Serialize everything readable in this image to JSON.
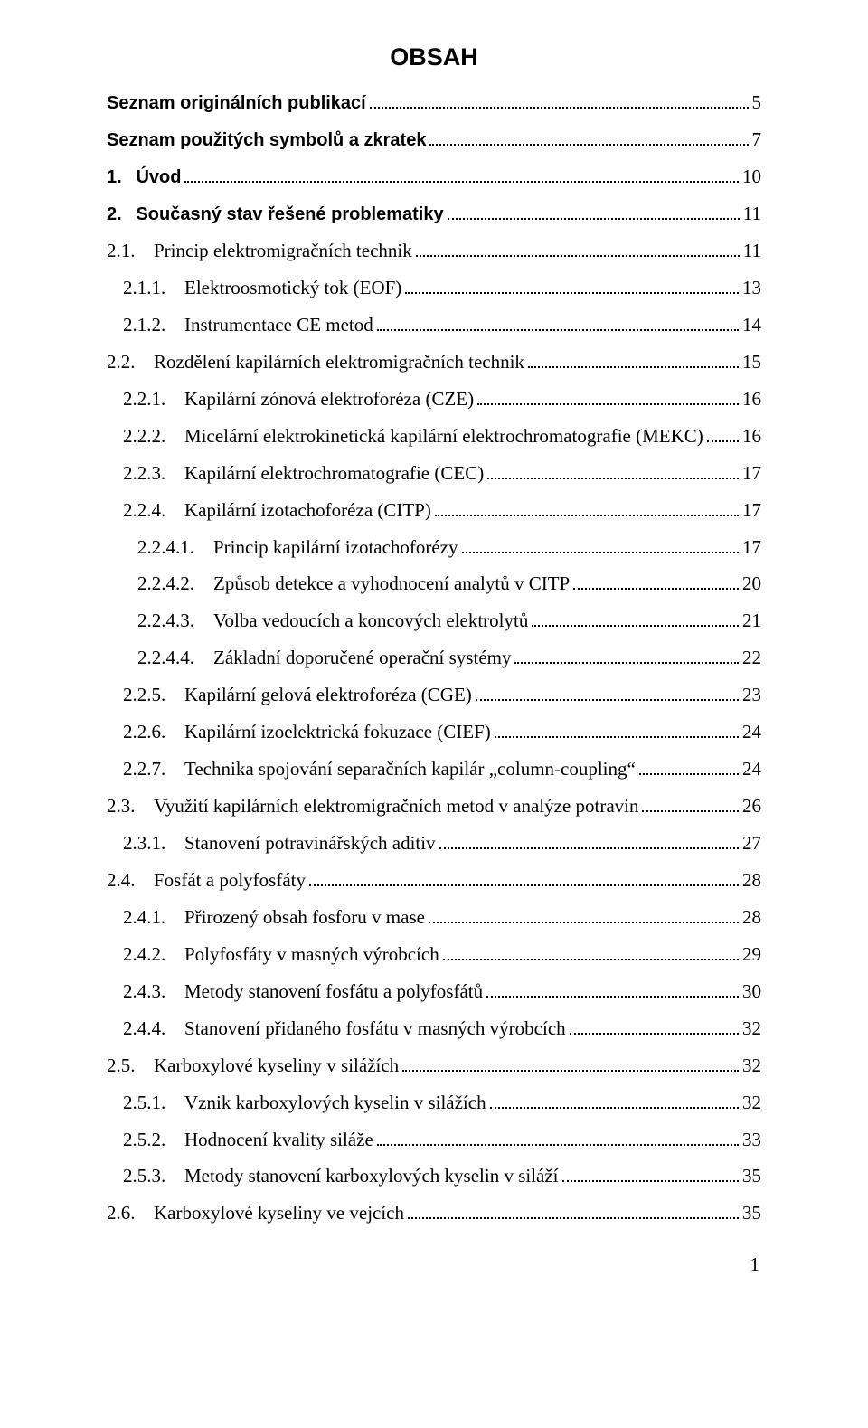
{
  "title": "OBSAH",
  "page_number": "1",
  "colors": {
    "background": "#ffffff",
    "text": "#000000",
    "dots": "#000000"
  },
  "typography": {
    "body_font": "Times New Roman, serif",
    "heading_font": "Arial, sans-serif",
    "body_fontsize_pt": 12,
    "title_fontsize_pt": 14,
    "line_height": 1.95
  },
  "entries": [
    {
      "num": "",
      "label": "Seznam originálních publikací",
      "page": "5",
      "level": 0,
      "bold": true
    },
    {
      "num": "",
      "label": "Seznam použitých symbolů a zkratek",
      "page": "7",
      "level": 0,
      "bold": true
    },
    {
      "num": "1.",
      "label": "Úvod",
      "page": "10",
      "level": 0,
      "bold": true,
      "numgap": " "
    },
    {
      "num": "2.",
      "label": "Současný stav řešené problematiky",
      "page": "11",
      "level": 0,
      "bold": true,
      "numgap": " "
    },
    {
      "num": "2.1.",
      "label": "Princip elektromigračních technik",
      "page": "11",
      "level": 1
    },
    {
      "num": "2.1.1.",
      "label": "Elektroosmotický tok (EOF)",
      "page": "13",
      "level": 2
    },
    {
      "num": "2.1.2.",
      "label": "Instrumentace CE metod",
      "page": "14",
      "level": 2
    },
    {
      "num": "2.2.",
      "label": "Rozdělení kapilárních elektromigračních technik",
      "page": "15",
      "level": 1
    },
    {
      "num": "2.2.1.",
      "label": "Kapilární zónová elektroforéza (CZE)",
      "page": "16",
      "level": 2
    },
    {
      "num": "2.2.2.",
      "label": "Micelární elektrokinetická kapilární elektrochromatografie (MEKC)",
      "page": "16",
      "level": 2
    },
    {
      "num": "2.2.3.",
      "label": "Kapilární elektrochromatografie (CEC)",
      "page": "17",
      "level": 2
    },
    {
      "num": "2.2.4.",
      "label": "Kapilární izotachoforéza (CITP)",
      "page": "17",
      "level": 2
    },
    {
      "num": "2.2.4.1.",
      "label": "Princip kapilární izotachoforézy",
      "page": "17",
      "level": 3
    },
    {
      "num": "2.2.4.2.",
      "label": "Způsob detekce a vyhodnocení analytů v CITP",
      "page": "20",
      "level": 3
    },
    {
      "num": "2.2.4.3.",
      "label": "Volba vedoucích a koncových elektrolytů",
      "page": "21",
      "level": 3
    },
    {
      "num": "2.2.4.4.",
      "label": "Základní doporučené operační systémy",
      "page": "22",
      "level": 3
    },
    {
      "num": "2.2.5.",
      "label": "Kapilární gelová elektroforéza (CGE)",
      "page": "23",
      "level": 2
    },
    {
      "num": "2.2.6.",
      "label": "Kapilární izoelektrická fokuzace (CIEF)",
      "page": "24",
      "level": 2
    },
    {
      "num": "2.2.7.",
      "label": "Technika spojování separačních kapilár „column-coupling“",
      "page": "24",
      "level": 2
    },
    {
      "num": "2.3.",
      "label": "Využití kapilárních elektromigračních metod v analýze potravin",
      "page": "26",
      "level": 1
    },
    {
      "num": "2.3.1.",
      "label": "Stanovení potravinářských aditiv",
      "page": "27",
      "level": 2
    },
    {
      "num": "2.4.",
      "label": "Fosfát a polyfosfáty",
      "page": "28",
      "level": 1
    },
    {
      "num": "2.4.1.",
      "label": "Přirozený obsah fosforu v mase",
      "page": "28",
      "level": 2
    },
    {
      "num": "2.4.2.",
      "label": "Polyfosfáty v masných výrobcích",
      "page": "29",
      "level": 2
    },
    {
      "num": "2.4.3.",
      "label": "Metody stanovení fosfátu a polyfosfátů",
      "page": "30",
      "level": 2
    },
    {
      "num": "2.4.4.",
      "label": "Stanovení přidaného fosfátu v masných výrobcích",
      "page": "32",
      "level": 2
    },
    {
      "num": "2.5.",
      "label": "Karboxylové kyseliny v silážích",
      "page": "32",
      "level": 1
    },
    {
      "num": "2.5.1.",
      "label": "Vznik karboxylových kyselin v silážích",
      "page": "32",
      "level": 2
    },
    {
      "num": "2.5.2.",
      "label": "Hodnocení kvality siláže",
      "page": "33",
      "level": 2
    },
    {
      "num": "2.5.3.",
      "label": "Metody stanovení karboxylových kyselin v siláží",
      "page": "35",
      "level": 2
    },
    {
      "num": "2.6.",
      "label": "Karboxylové kyseliny ve vejcích",
      "page": "35",
      "level": 1
    }
  ]
}
